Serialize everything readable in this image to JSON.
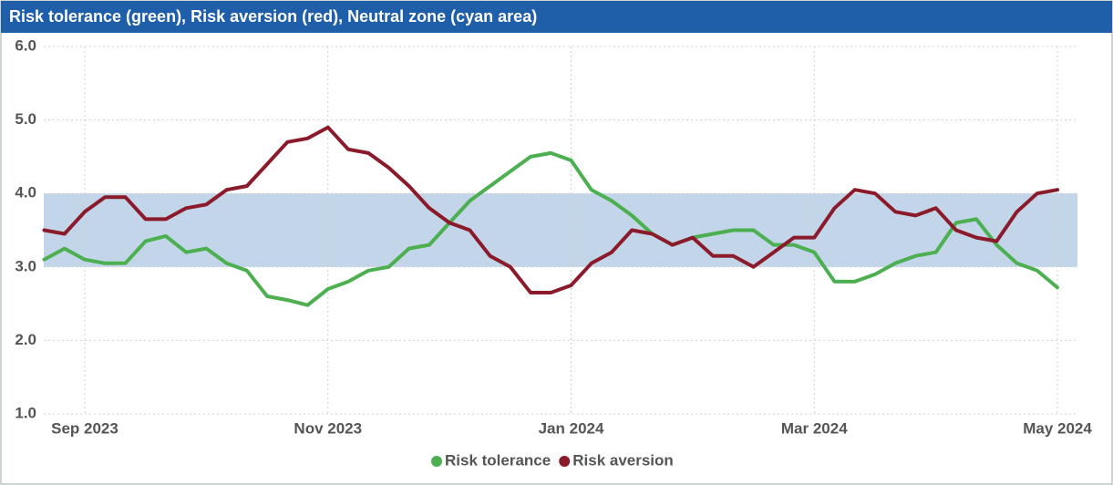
{
  "chart_data": {
    "type": "line",
    "title": "Risk tolerance (green), Risk aversion (red), Neutral zone (cyan area)",
    "categories": [
      null,
      null,
      "Sep 2023",
      null,
      null,
      null,
      null,
      null,
      null,
      null,
      null,
      null,
      null,
      null,
      "Nov 2023",
      null,
      null,
      null,
      null,
      null,
      null,
      null,
      null,
      null,
      null,
      null,
      "Jan 2024",
      null,
      null,
      null,
      null,
      null,
      null,
      null,
      null,
      null,
      null,
      null,
      "Mar 2024",
      null,
      null,
      null,
      null,
      null,
      null,
      null,
      null,
      null,
      null,
      null,
      "May 2024"
    ],
    "series": [
      {
        "name": "Risk tolerance",
        "color": "#4caf50",
        "values": [
          3.1,
          3.25,
          3.1,
          3.05,
          3.05,
          3.35,
          3.42,
          3.2,
          3.25,
          3.05,
          2.95,
          2.6,
          2.55,
          2.48,
          2.7,
          2.8,
          2.95,
          3.0,
          3.25,
          3.3,
          3.6,
          3.9,
          4.1,
          4.3,
          4.5,
          4.55,
          4.45,
          4.05,
          3.9,
          3.7,
          3.45,
          3.3,
          3.4,
          3.45,
          3.5,
          3.5,
          3.3,
          3.3,
          3.2,
          2.8,
          2.8,
          2.9,
          3.05,
          3.15,
          3.2,
          3.6,
          3.65,
          3.3,
          3.05,
          2.95,
          2.72
        ]
      },
      {
        "name": "Risk aversion",
        "color": "#8b1a2b",
        "values": [
          3.5,
          3.45,
          3.75,
          3.95,
          3.95,
          3.65,
          3.65,
          3.8,
          3.85,
          4.05,
          4.1,
          4.4,
          4.7,
          4.75,
          4.9,
          4.6,
          4.55,
          4.35,
          4.1,
          3.8,
          3.6,
          3.5,
          3.15,
          3.0,
          2.65,
          2.65,
          2.75,
          3.05,
          3.2,
          3.5,
          3.45,
          3.3,
          3.4,
          3.15,
          3.15,
          3.0,
          3.2,
          3.4,
          3.4,
          3.8,
          4.05,
          4.0,
          3.75,
          3.7,
          3.8,
          3.5,
          3.4,
          3.35,
          3.75,
          4.0,
          4.05
        ]
      }
    ],
    "neutral_zone": {
      "from": 3,
      "to": 4,
      "color": "#c3d5e8"
    },
    "ylim": [
      1,
      6
    ],
    "yticks": [
      {
        "value": 1,
        "label": "1.0"
      },
      {
        "value": 2,
        "label": "2.0"
      },
      {
        "value": 3,
        "label": "3.0"
      },
      {
        "value": 4,
        "label": "4.0"
      },
      {
        "value": 5,
        "label": "5.0"
      },
      {
        "value": 6,
        "label": "6.0"
      }
    ],
    "grid": true,
    "legend": "bottom"
  }
}
